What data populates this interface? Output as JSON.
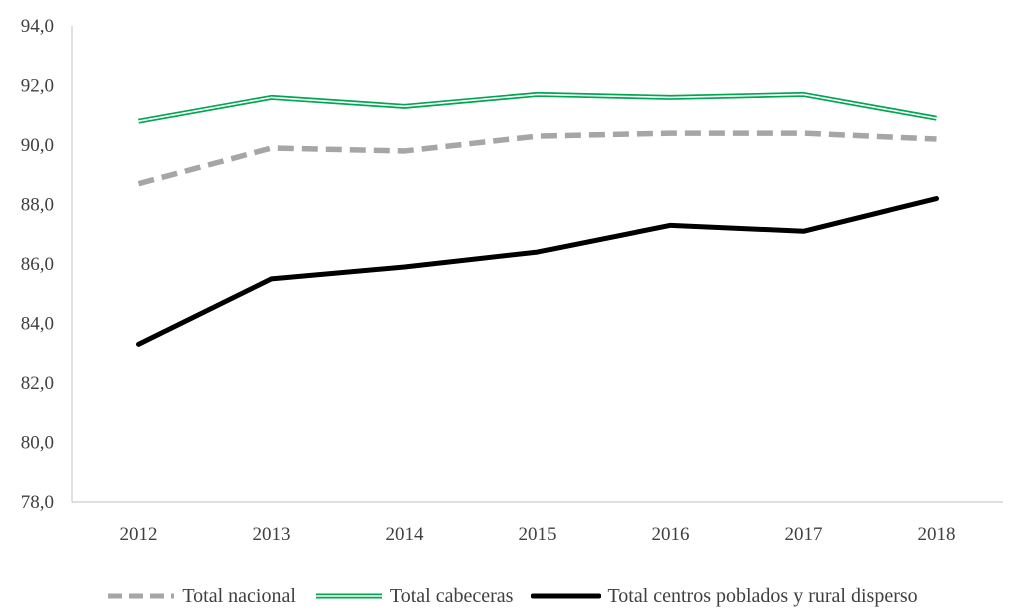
{
  "chart_data": {
    "type": "line",
    "title": "",
    "xlabel": "",
    "ylabel": "",
    "categories": [
      "2012",
      "2013",
      "2014",
      "2015",
      "2016",
      "2017",
      "2018"
    ],
    "y_ticks": [
      "78,0",
      "80,0",
      "82,0",
      "84,0",
      "86,0",
      "88,0",
      "90,0",
      "92,0",
      "94,0"
    ],
    "ylim": [
      78,
      94
    ],
    "grid": false,
    "legend_position": "bottom",
    "series": [
      {
        "name": "Total nacional",
        "values": [
          88.7,
          89.9,
          89.8,
          90.3,
          90.4,
          90.4,
          90.2
        ],
        "color": "#a6a6a6",
        "style": "dashed"
      },
      {
        "name": "Total cabeceras",
        "values": [
          90.8,
          91.6,
          91.3,
          91.7,
          91.6,
          91.7,
          90.9
        ],
        "color": "#00a651",
        "style": "double"
      },
      {
        "name": "Total centros poblados y rural disperso",
        "values": [
          83.3,
          85.5,
          85.9,
          86.4,
          87.3,
          87.1,
          88.2
        ],
        "color": "#000000",
        "style": "solid"
      }
    ]
  }
}
